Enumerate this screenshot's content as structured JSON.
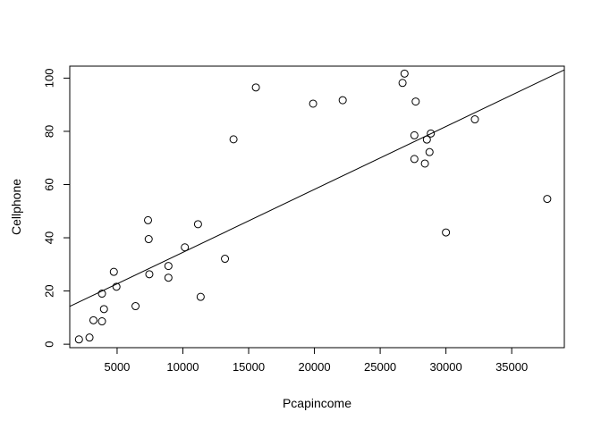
{
  "chart_data": {
    "type": "scatter",
    "title": "",
    "xlabel": "Pcapincome",
    "ylabel": "Cellphone",
    "xlim": [
      1400,
      39000
    ],
    "ylim": [
      -1.3,
      104.5
    ],
    "x_ticks": [
      5000,
      10000,
      15000,
      20000,
      25000,
      30000,
      35000
    ],
    "x_tick_labels": [
      "5000",
      "10000",
      "15000",
      "20000",
      "25000",
      "30000",
      "35000"
    ],
    "y_ticks": [
      0,
      20,
      40,
      60,
      80,
      100
    ],
    "y_tick_labels": [
      "0",
      "20",
      "40",
      "60",
      "80",
      "100"
    ],
    "grid": false,
    "points": [
      {
        "x": 2100,
        "y": 1.8
      },
      {
        "x": 2900,
        "y": 2.5
      },
      {
        "x": 3200,
        "y": 9.0
      },
      {
        "x": 3850,
        "y": 8.6
      },
      {
        "x": 3850,
        "y": 19.0
      },
      {
        "x": 4000,
        "y": 13.2
      },
      {
        "x": 4750,
        "y": 27.2
      },
      {
        "x": 4950,
        "y": 21.6
      },
      {
        "x": 6400,
        "y": 14.3
      },
      {
        "x": 7350,
        "y": 46.6
      },
      {
        "x": 7400,
        "y": 39.5
      },
      {
        "x": 7450,
        "y": 26.3
      },
      {
        "x": 8900,
        "y": 29.4
      },
      {
        "x": 8900,
        "y": 25.0
      },
      {
        "x": 10150,
        "y": 36.4
      },
      {
        "x": 11150,
        "y": 45.1
      },
      {
        "x": 11350,
        "y": 17.8
      },
      {
        "x": 13200,
        "y": 32.1
      },
      {
        "x": 13850,
        "y": 77.0
      },
      {
        "x": 15550,
        "y": 96.5
      },
      {
        "x": 19900,
        "y": 90.4
      },
      {
        "x": 22150,
        "y": 91.7
      },
      {
        "x": 26700,
        "y": 98.2
      },
      {
        "x": 26850,
        "y": 101.7
      },
      {
        "x": 27600,
        "y": 78.5
      },
      {
        "x": 27600,
        "y": 69.6
      },
      {
        "x": 27700,
        "y": 91.2
      },
      {
        "x": 28400,
        "y": 67.9
      },
      {
        "x": 28550,
        "y": 76.9
      },
      {
        "x": 28750,
        "y": 72.2
      },
      {
        "x": 28850,
        "y": 79.2
      },
      {
        "x": 30000,
        "y": 42.0
      },
      {
        "x": 32200,
        "y": 84.5
      },
      {
        "x": 37700,
        "y": 54.6
      }
    ],
    "fit_line": {
      "x0": 1400,
      "y0": 14.2,
      "x1": 39000,
      "y1": 103.1
    }
  }
}
